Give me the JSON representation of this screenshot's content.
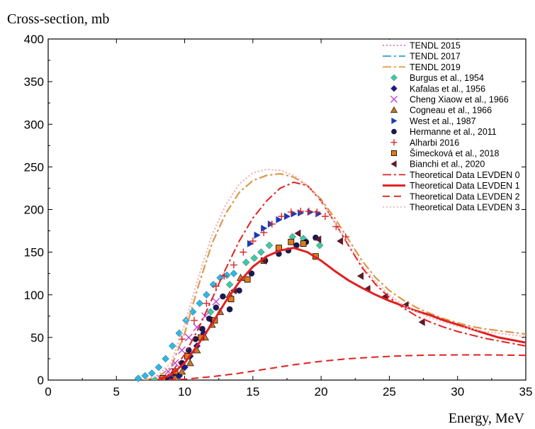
{
  "chart_data": {
    "type": "scatter",
    "ylabel": "Cross-section, mb",
    "xlabel": "Energy, MeV",
    "xlim": [
      0,
      35
    ],
    "ylim": [
      0,
      400
    ],
    "xticks": [
      0,
      5,
      10,
      15,
      20,
      25,
      30,
      35
    ],
    "yticks": [
      0,
      50,
      100,
      150,
      200,
      250,
      300,
      350,
      400
    ],
    "grid": false,
    "legend_position": "top-right",
    "series": [
      {
        "name": "TENDL 2015",
        "kind": "line",
        "color": "#e377c2",
        "dash": "dotted",
        "x": [
          7,
          8,
          9,
          10,
          11,
          12,
          13,
          14,
          15,
          16,
          17,
          18,
          19,
          20,
          21,
          22,
          23,
          24,
          25,
          26,
          27,
          28,
          29,
          30,
          31,
          32,
          33,
          34,
          35
        ],
        "y": [
          0,
          5,
          20,
          65,
          120,
          170,
          205,
          230,
          243,
          247,
          246,
          240,
          228,
          210,
          185,
          160,
          135,
          115,
          100,
          88,
          80,
          73,
          68,
          63,
          60,
          57,
          55,
          53,
          51
        ]
      },
      {
        "name": "TENDL 2017",
        "kind": "line",
        "color": "#3aa0d8",
        "dash": "dashdot",
        "x": [
          7,
          8,
          9,
          10,
          11,
          12,
          13,
          14,
          15,
          16,
          17,
          18,
          19,
          20,
          21,
          22,
          23,
          24,
          25,
          26,
          27,
          28,
          29,
          30,
          31,
          32,
          33,
          34,
          35
        ],
        "y": [
          0,
          3,
          15,
          55,
          110,
          160,
          195,
          220,
          234,
          240,
          242,
          238,
          228,
          212,
          190,
          165,
          140,
          120,
          105,
          94,
          85,
          78,
          72,
          67,
          63,
          60,
          58,
          56,
          54
        ]
      },
      {
        "name": "TENDL 2019",
        "kind": "line",
        "color": "#e8963a",
        "dash": "dashdot",
        "x": [
          7,
          8,
          9,
          10,
          11,
          12,
          13,
          14,
          15,
          16,
          17,
          18,
          19,
          20,
          21,
          22,
          23,
          24,
          25,
          26,
          27,
          28,
          29,
          30,
          31,
          32,
          33,
          34,
          35
        ],
        "y": [
          0,
          3,
          15,
          55,
          110,
          160,
          195,
          220,
          234,
          240,
          242,
          238,
          228,
          212,
          190,
          165,
          140,
          120,
          105,
          94,
          85,
          78,
          72,
          67,
          63,
          60,
          58,
          56,
          54
        ]
      },
      {
        "name": "Burgus et al., 1954",
        "kind": "points",
        "color": "#3ec9a6",
        "marker": "diamond",
        "x": [
          7.8,
          11.9,
          13.3,
          14.5,
          15.1,
          15.6,
          16.2,
          17.9,
          18.7,
          19.9
        ],
        "y": [
          0,
          80,
          112,
          138,
          143,
          150,
          158,
          168,
          166,
          158
        ]
      },
      {
        "name": "Kafalas et al., 1956",
        "kind": "points",
        "color": "#1a1a8c",
        "marker": "diamond",
        "x": [
          9,
          9.6,
          10,
          10.4,
          10.9,
          11.4,
          12
        ],
        "y": [
          2,
          5,
          15,
          28,
          40,
          55,
          70
        ]
      },
      {
        "name": "Cheng Xiaow  et al., 1966",
        "kind": "points",
        "color": "#b845d6",
        "marker": "x",
        "x": [
          8.2,
          8.8,
          9.3,
          9.8,
          10.3,
          10.9,
          11.5,
          12.3
        ],
        "y": [
          2,
          10,
          20,
          35,
          50,
          62,
          75,
          92
        ]
      },
      {
        "name": "Cogneau  et al., 1966",
        "kind": "points",
        "color": "#c8762a",
        "marker": "triangle",
        "x": [
          9.3,
          9.8,
          10.4,
          10.9,
          11.5,
          12,
          12.6,
          13.3,
          14.1
        ],
        "y": [
          3,
          10,
          20,
          35,
          50,
          65,
          80,
          100,
          120
        ]
      },
      {
        "name": " West et al., 1987",
        "kind": "points",
        "color": "#1a3ab8",
        "marker": "triangle-right",
        "x": [
          14.8,
          15.3,
          15.8,
          16.3,
          16.9,
          17.5,
          18,
          18.5,
          19.2,
          19.8
        ],
        "y": [
          160,
          170,
          178,
          183,
          188,
          192,
          195,
          196,
          197,
          195
        ]
      },
      {
        "name": "Hermanne et al., 2011",
        "kind": "points",
        "color": "#1a1a50",
        "marker": "circle",
        "x": [
          8.6,
          9.2,
          9.8,
          10.3,
          10.8,
          11.3,
          11.8,
          12.3,
          12.8,
          13.3,
          14,
          14.9,
          15.9,
          16.9,
          17.6,
          18.2,
          18.9,
          19.6
        ],
        "y": [
          2,
          8,
          20,
          35,
          48,
          60,
          72,
          85,
          98,
          83,
          105,
          125,
          140,
          148,
          152,
          158,
          162,
          167
        ]
      },
      {
        "name": "Alharbi 2016",
        "kind": "points",
        "color": "#d62828",
        "marker": "plus",
        "x": [
          9.8,
          10.7,
          11.6,
          12.3,
          12.9,
          13.6,
          14.3,
          15,
          15.8,
          16.4,
          17.1,
          17.8,
          18.5,
          19.1,
          19.7,
          20.3,
          21.1,
          21.8
        ],
        "y": [
          48,
          70,
          90,
          110,
          122,
          135,
          150,
          163,
          173,
          183,
          192,
          197,
          198,
          198,
          197,
          192,
          180,
          168
        ]
      },
      {
        "name": "Šimecková et al.,  2018",
        "kind": "points",
        "color": "#e07b1a",
        "marker": "square",
        "x": [
          8.4,
          9.3,
          10.2,
          11.2,
          12.2,
          13.4,
          14.6,
          15.8,
          16.9,
          17.8,
          18.7,
          19.6
        ],
        "y": [
          2,
          10,
          28,
          50,
          70,
          95,
          118,
          140,
          155,
          162,
          160,
          145
        ]
      },
      {
        "name": "Bianchi et al., 2020",
        "kind": "points",
        "color": "#5a1a2a",
        "marker": "triangle-left",
        "x": [
          13.6,
          15.8,
          18.3,
          19.8,
          21.4,
          22.9,
          23.4,
          24.7,
          26.2,
          27.4
        ],
        "y": [
          105,
          140,
          172,
          165,
          163,
          122,
          107,
          98,
          88,
          68
        ]
      },
      {
        "name": "Theoretical Data LEVDEN 0",
        "kind": "line",
        "color": "#e02020",
        "dash": "dashdot",
        "x": [
          8,
          9,
          10,
          11,
          12,
          13,
          14,
          15,
          16,
          17,
          18,
          19,
          20,
          21,
          22,
          23,
          24,
          25,
          26,
          27,
          28,
          29,
          30,
          31,
          32,
          33,
          34,
          35
        ],
        "y": [
          0,
          8,
          30,
          60,
          95,
          130,
          163,
          190,
          210,
          225,
          232,
          228,
          210,
          185,
          158,
          132,
          112,
          97,
          85,
          75,
          68,
          62,
          57,
          53,
          49,
          46,
          43,
          40
        ]
      },
      {
        "name": "Theoretical Data LEVDEN 1",
        "kind": "line",
        "color": "#e02020",
        "dash": "solid",
        "x": [
          8,
          9,
          10,
          11,
          12,
          13,
          14,
          15,
          16,
          17,
          18,
          19,
          20,
          21,
          22,
          23,
          24,
          25,
          26,
          27,
          28,
          29,
          30,
          31,
          32,
          33,
          34,
          35
        ],
        "y": [
          0,
          6,
          20,
          42,
          66,
          92,
          115,
          133,
          145,
          152,
          155,
          150,
          140,
          128,
          117,
          108,
          100,
          93,
          87,
          81,
          76,
          70,
          65,
          60,
          55,
          50,
          47,
          44
        ]
      },
      {
        "name": "Theoretical Data LEVDEN 2",
        "kind": "line",
        "color": "#e02020",
        "dash": "dashed",
        "x": [
          8,
          10,
          12,
          14,
          16,
          18,
          20,
          22,
          24,
          26,
          28,
          30,
          32,
          34,
          35
        ],
        "y": [
          0,
          1,
          4,
          8,
          13,
          18,
          22,
          25,
          27,
          28.5,
          29.3,
          29.5,
          29.5,
          29.2,
          29
        ]
      },
      {
        "name": "Theoretical Data LEVDEN 3",
        "kind": "line",
        "color": "#f2b8b8",
        "dash": "dotted",
        "x": [
          7,
          8,
          9,
          10,
          11,
          12,
          13,
          14,
          15,
          16,
          17,
          18,
          19,
          20,
          21,
          22,
          23,
          24,
          25,
          26,
          27,
          28,
          29,
          30,
          31,
          32,
          33,
          34,
          35
        ],
        "y": [
          0,
          5,
          20,
          65,
          120,
          170,
          205,
          230,
          243,
          247,
          246,
          240,
          228,
          210,
          185,
          160,
          135,
          115,
          100,
          88,
          80,
          73,
          68,
          63,
          60,
          57,
          55,
          53,
          51
        ]
      }
    ],
    "extra_points": [
      {
        "marker": "diamond",
        "color": "#2ab8e8",
        "x": [
          6.6,
          7.1,
          7.6,
          8.1,
          8.6,
          9.1,
          9.6,
          10.1,
          10.6,
          11.1,
          11.6,
          12.1,
          12.6,
          13.1,
          13.6
        ],
        "y": [
          2,
          5,
          8,
          15,
          25,
          40,
          55,
          70,
          80,
          90,
          100,
          112,
          120,
          123,
          125
        ]
      }
    ]
  }
}
